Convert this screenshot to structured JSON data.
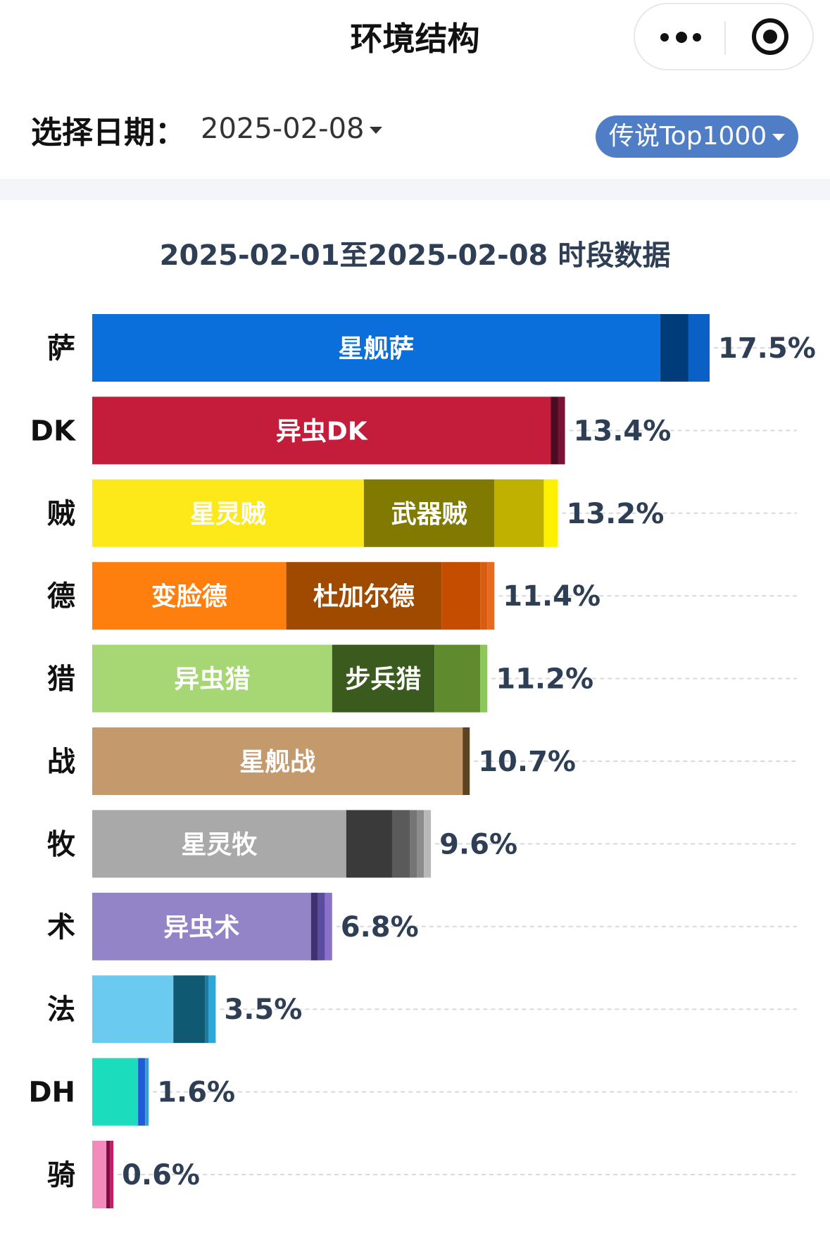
{
  "nav": {
    "title": "环境结构"
  },
  "filters": {
    "date_label": "选择日期：",
    "date_value": "2025-02-08",
    "rank_label": "传说Top1000"
  },
  "chart_data": {
    "type": "bar",
    "orientation": "horizontal",
    "stacked": true,
    "title": "2025-02-01至2025-02-08 时段数据",
    "xlim": [
      0,
      20
    ],
    "grid": "dashed-horizontal",
    "rows": [
      {
        "class": "萨",
        "total": 17.5,
        "total_label": "17.5%",
        "segments": [
          {
            "name": "星舰萨",
            "value": 16.1,
            "color": "#0b6fdb"
          },
          {
            "name": "",
            "value": 0.8,
            "color": "#003b7a"
          },
          {
            "name": "",
            "value": 0.6,
            "color": "#0a60c4"
          }
        ]
      },
      {
        "class": "DK",
        "total": 13.4,
        "total_label": "13.4%",
        "segments": [
          {
            "name": "异虫DK",
            "value": 13.0,
            "color": "#c41d3c"
          },
          {
            "name": "",
            "value": 0.2,
            "color": "#4a0c22"
          },
          {
            "name": "",
            "value": 0.2,
            "color": "#7a1238"
          }
        ]
      },
      {
        "class": "贼",
        "total": 13.2,
        "total_label": "13.2%",
        "segments": [
          {
            "name": "星灵贼",
            "value": 7.7,
            "color": "#fde81a"
          },
          {
            "name": "武器贼",
            "value": 3.7,
            "color": "#807a00"
          },
          {
            "name": "",
            "value": 1.4,
            "color": "#c0b100"
          },
          {
            "name": "",
            "value": 0.4,
            "color": "#fff000"
          }
        ]
      },
      {
        "class": "德",
        "total": 11.4,
        "total_label": "11.4%",
        "segments": [
          {
            "name": "变脸德",
            "value": 5.5,
            "color": "#ff7f0e"
          },
          {
            "name": "杜加尔德",
            "value": 4.4,
            "color": "#a04a00"
          },
          {
            "name": "",
            "value": 1.1,
            "color": "#c54d00"
          },
          {
            "name": "",
            "value": 0.2,
            "color": "#d95c10"
          },
          {
            "name": "",
            "value": 0.2,
            "color": "#e86a1a"
          }
        ]
      },
      {
        "class": "猎",
        "total": 11.2,
        "total_label": "11.2%",
        "segments": [
          {
            "name": "异虫猎",
            "value": 6.8,
            "color": "#a7d675"
          },
          {
            "name": "步兵猎",
            "value": 2.9,
            "color": "#3b5a1e"
          },
          {
            "name": "",
            "value": 1.3,
            "color": "#5f8a2e"
          },
          {
            "name": "",
            "value": 0.2,
            "color": "#8cc858"
          }
        ]
      },
      {
        "class": "战",
        "total": 10.7,
        "total_label": "10.7%",
        "segments": [
          {
            "name": "星舰战",
            "value": 10.5,
            "color": "#c49a6c"
          },
          {
            "name": "",
            "value": 0.2,
            "color": "#5c4326"
          }
        ]
      },
      {
        "class": "牧",
        "total": 9.6,
        "total_label": "9.6%",
        "segments": [
          {
            "name": "星灵牧",
            "value": 7.2,
            "color": "#a9a9a9"
          },
          {
            "name": "",
            "value": 1.3,
            "color": "#3a3a3a"
          },
          {
            "name": "",
            "value": 0.5,
            "color": "#5a5a5a"
          },
          {
            "name": "",
            "value": 0.2,
            "color": "#757575"
          },
          {
            "name": "",
            "value": 0.2,
            "color": "#8c8c8c"
          },
          {
            "name": "",
            "value": 0.2,
            "color": "#b8b8b8"
          }
        ]
      },
      {
        "class": "术",
        "total": 6.8,
        "total_label": "6.8%",
        "segments": [
          {
            "name": "异虫术",
            "value": 6.2,
            "color": "#9284c6"
          },
          {
            "name": "",
            "value": 0.2,
            "color": "#3f3070"
          },
          {
            "name": "",
            "value": 0.2,
            "color": "#5b4ca0"
          },
          {
            "name": "",
            "value": 0.2,
            "color": "#8a72c8"
          }
        ]
      },
      {
        "class": "法",
        "total": 3.5,
        "total_label": "3.5%",
        "segments": [
          {
            "name": "",
            "value": 2.3,
            "color": "#6bcaf0"
          },
          {
            "name": "",
            "value": 0.9,
            "color": "#0f5a72"
          },
          {
            "name": "",
            "value": 0.1,
            "color": "#1d7aa0"
          },
          {
            "name": "",
            "value": 0.2,
            "color": "#2aa8d8"
          }
        ]
      },
      {
        "class": "DH",
        "total": 1.6,
        "total_label": "1.6%",
        "segments": [
          {
            "name": "",
            "value": 1.3,
            "color": "#1cdcbe"
          },
          {
            "name": "",
            "value": 0.2,
            "color": "#1f5bd6"
          },
          {
            "name": "",
            "value": 0.1,
            "color": "#3a9ad8"
          }
        ]
      },
      {
        "class": "骑",
        "total": 0.6,
        "total_label": "0.6%",
        "segments": [
          {
            "name": "",
            "value": 0.4,
            "color": "#f28bbb"
          },
          {
            "name": "",
            "value": 0.1,
            "color": "#7a1040"
          },
          {
            "name": "",
            "value": 0.1,
            "color": "#c21e6e"
          }
        ]
      }
    ]
  }
}
